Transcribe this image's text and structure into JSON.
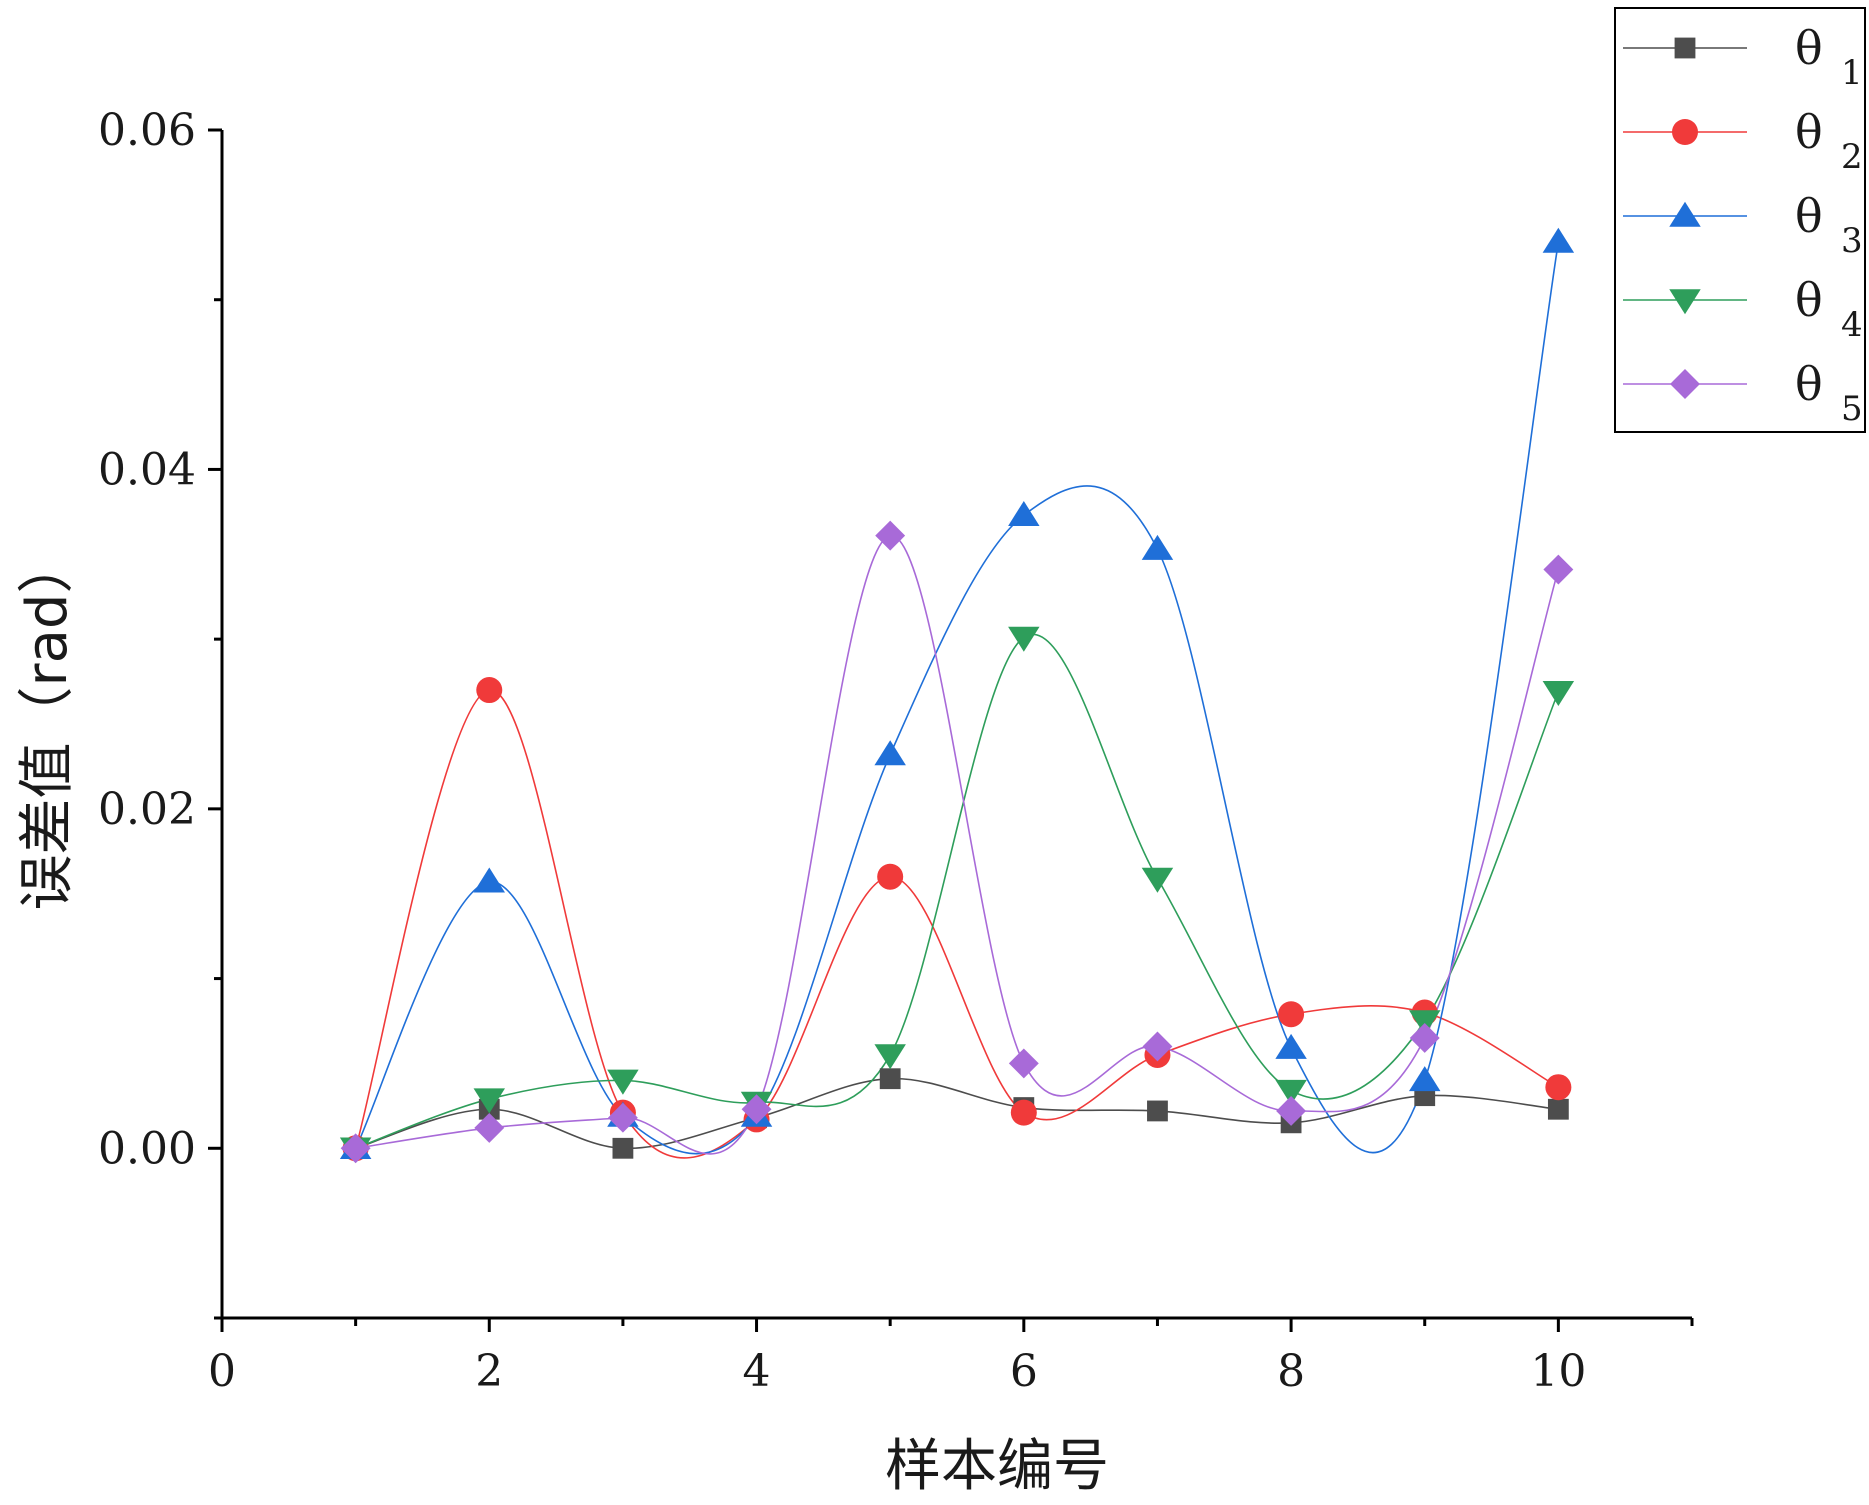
{
  "chart_data": {
    "type": "line",
    "title": "",
    "xlabel": "样本编号",
    "ylabel": "误差值（rad）",
    "xlim": [
      0,
      11
    ],
    "ylim": [
      -0.01,
      0.06
    ],
    "x_ticks": [
      0,
      2,
      4,
      6,
      8,
      10
    ],
    "x_tick_labels": [
      "0",
      "2",
      "4",
      "6",
      "8",
      "10"
    ],
    "y_ticks": [
      0.0,
      0.02,
      0.04,
      0.06
    ],
    "y_tick_labels": [
      "0.00",
      "0.02",
      "0.04",
      "0.06"
    ],
    "grid": false,
    "legend_position": "top-right",
    "x": [
      1,
      2,
      3,
      4,
      5,
      6,
      7,
      8,
      9,
      10
    ],
    "series": [
      {
        "name": "θ",
        "subscript": "1",
        "color": "#4d4d4d",
        "marker": "square",
        "values": [
          0.0,
          0.0023,
          0.0,
          0.0018,
          0.0041,
          0.0024,
          0.0022,
          0.0015,
          0.0031,
          0.0023
        ]
      },
      {
        "name": "θ",
        "subscript": "2",
        "color": "#f03a3a",
        "marker": "circle",
        "values": [
          0.0,
          0.027,
          0.0021,
          0.0017,
          0.016,
          0.0021,
          0.0055,
          0.0079,
          0.008,
          0.0036
        ]
      },
      {
        "name": "θ",
        "subscript": "3",
        "color": "#1f6fd8",
        "marker": "triangle-up",
        "values": [
          0.0,
          0.0157,
          0.0019,
          0.0019,
          0.0232,
          0.0373,
          0.0353,
          0.0059,
          0.004,
          0.0534
        ]
      },
      {
        "name": "θ",
        "subscript": "4",
        "color": "#2e9e5b",
        "marker": "triangle-down",
        "values": [
          0.0,
          0.0029,
          0.004,
          0.0027,
          0.0055,
          0.0301,
          0.0159,
          0.0034,
          0.0075,
          0.0269
        ]
      },
      {
        "name": "θ",
        "subscript": "5",
        "color": "#a86ad8",
        "marker": "diamond",
        "values": [
          0.0,
          0.0012,
          0.0018,
          0.0023,
          0.0361,
          0.005,
          0.006,
          0.0022,
          0.0065,
          0.0341
        ]
      }
    ]
  }
}
